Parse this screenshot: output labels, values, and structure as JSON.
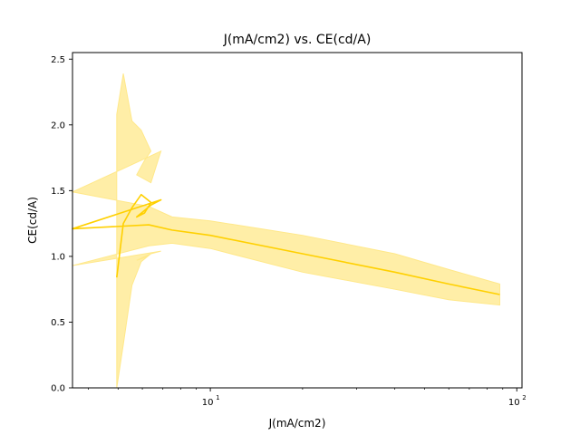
{
  "chart_data": {
    "type": "line",
    "title": "J(mA/cm2) vs. CE(cd/A)",
    "xlabel": "J(mA/cm2)",
    "ylabel": "CE(cd/A)",
    "xscale": "log",
    "xlim": [
      3.55,
      104
    ],
    "ylim": [
      0.0,
      2.55
    ],
    "x_ticks": [
      {
        "value": 10,
        "label": "10",
        "sup": "1"
      },
      {
        "value": 100,
        "label": "10",
        "sup": "2"
      }
    ],
    "y_ticks": [
      {
        "value": 0.0,
        "label": "0.0"
      },
      {
        "value": 0.5,
        "label": "0.5"
      },
      {
        "value": 1.0,
        "label": "1.0"
      },
      {
        "value": 1.5,
        "label": "1.5"
      },
      {
        "value": 2.0,
        "label": "2.0"
      },
      {
        "value": 2.5,
        "label": "2.5"
      }
    ],
    "grid": false,
    "legend": "none",
    "colors": {
      "line": "#ffd000",
      "band": "#ffe88a",
      "axes": "#000000"
    },
    "series": [
      {
        "x": [
          4.95,
          5.2,
          5.55,
          5.95,
          6.4,
          6.1,
          5.75,
          6.4,
          6.9,
          3.55,
          6.3,
          7.5,
          10,
          20,
          40,
          60,
          88
        ],
        "y": [
          0.84,
          1.25,
          1.37,
          1.47,
          1.41,
          1.33,
          1.3,
          1.39,
          1.43,
          1.21,
          1.24,
          1.2,
          1.16,
          1.02,
          0.88,
          0.79,
          0.71
        ],
        "lower": [
          0.0,
          0.33,
          0.78,
          0.96,
          1.02,
          0.99,
          0.97,
          1.02,
          1.04,
          0.93,
          1.08,
          1.1,
          1.06,
          0.88,
          0.75,
          0.67,
          0.63
        ],
        "upper": [
          2.08,
          2.39,
          2.03,
          1.96,
          1.8,
          1.73,
          1.62,
          1.56,
          1.8,
          1.49,
          1.38,
          1.3,
          1.27,
          1.16,
          1.02,
          0.9,
          0.79
        ]
      }
    ]
  }
}
